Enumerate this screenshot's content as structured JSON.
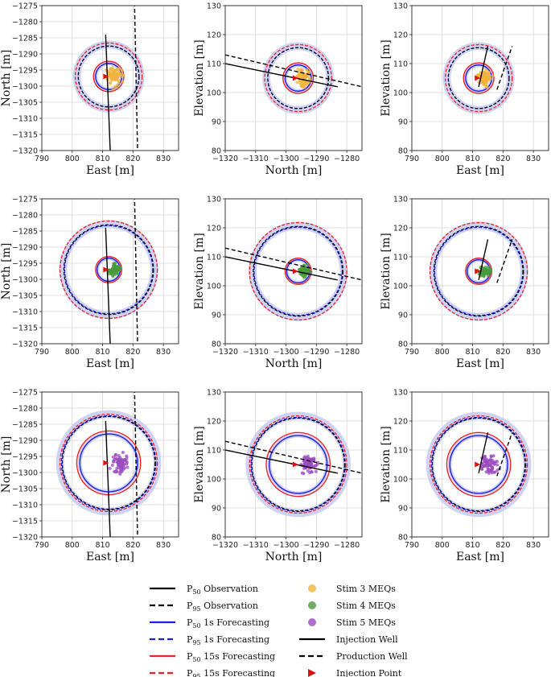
{
  "chart_data": {
    "type": "scatter",
    "layout": "3x3 grid",
    "rows": [
      {
        "stim": "Stim 3",
        "color": "#f0b33c",
        "p50_radius": 4.5,
        "p95_radius": 5.0,
        "p50_15s_radius": 5.0,
        "p95_15s_radius": 11.0,
        "p50_1s_radius": 4.3,
        "p95_1s_radius": 10.0
      },
      {
        "stim": "Stim 4",
        "color": "#4a9a3c",
        "p50_radius": 4.0,
        "p95_radius": 15.0,
        "p50_15s_radius": 4.3,
        "p95_15s_radius": 16.0,
        "p50_1s_radius": 3.8,
        "p95_1s_radius": 14.5
      },
      {
        "stim": "Stim 5",
        "color": "#9b4bbf",
        "p50_radius": 10.0,
        "p95_radius": 15.0,
        "p50_15s_radius": 10.5,
        "p95_15s_radius": 16.0,
        "p50_1s_radius": 9.5,
        "p95_1s_radius": 15.5
      }
    ],
    "panels": [
      {
        "name": "map-view",
        "xlabel": "East [m]",
        "ylabel": "North [m]",
        "xlim": [
          790,
          835
        ],
        "ylim": [
          -1320,
          -1275
        ],
        "xticks": [
          790,
          800,
          810,
          820,
          830
        ],
        "yticks": [
          -1275,
          -1280,
          -1285,
          -1290,
          -1295,
          -1300,
          -1305,
          -1310,
          -1315,
          -1320
        ],
        "center": [
          812,
          -1297
        ]
      },
      {
        "name": "side-view-north",
        "xlabel": "North [m]",
        "ylabel": "Elevation [m]",
        "xlim": [
          -1320,
          -1275
        ],
        "ylim": [
          80,
          130
        ],
        "xticks": [
          -1320,
          -1310,
          -1300,
          -1290,
          -1280
        ],
        "yticks": [
          80,
          90,
          100,
          110,
          120,
          130
        ],
        "center": [
          -1296,
          105
        ]
      },
      {
        "name": "side-view-east",
        "xlabel": "East [m]",
        "ylabel": "Elevation [m]",
        "xlim": [
          790,
          835
        ],
        "ylim": [
          80,
          130
        ],
        "xticks": [
          790,
          800,
          810,
          820,
          830
        ],
        "yticks": [
          80,
          90,
          100,
          110,
          120,
          130
        ],
        "center": [
          812,
          105
        ]
      }
    ],
    "wells": {
      "injection": {
        "map": [
          [
            811,
            -1284
          ],
          [
            812.5,
            -1320
          ]
        ],
        "north": [
          [
            -1320,
            110
          ],
          [
            -1283,
            102
          ]
        ],
        "east": [
          [
            812,
            102
          ],
          [
            815,
            116
          ]
        ]
      },
      "production": {
        "map": [
          [
            820.5,
            -1274
          ],
          [
            821.5,
            -1320
          ]
        ],
        "north": [
          [
            -1320,
            113
          ],
          [
            -1275,
            102
          ]
        ],
        "east": [
          [
            818,
            101
          ],
          [
            823,
            116
          ]
        ]
      },
      "injection_point": {
        "map": [
          811,
          -1297
        ],
        "north": [
          -1297,
          105
        ],
        "east": [
          811.5,
          105
        ]
      }
    },
    "legend": {
      "col1": [
        {
          "label": "P",
          "sub": "50",
          "rest": " Observation",
          "style": "solid",
          "color": "#000000"
        },
        {
          "label": "P",
          "sub": "95",
          "rest": " Observation",
          "style": "dashed",
          "color": "#000000"
        },
        {
          "label": "P",
          "sub": "50",
          "rest": " 1s Forecasting",
          "style": "solid",
          "color": "#1f1fe0"
        },
        {
          "label": "P",
          "sub": "95",
          "rest": " 1s Forecasting",
          "style": "dashed",
          "color": "#1f1fe0"
        },
        {
          "label": "P",
          "sub": "50",
          "rest": " 15s Forecasting",
          "style": "solid",
          "color": "#ee2222"
        },
        {
          "label": "P",
          "sub": "95",
          "rest": " 15s Forecasting",
          "style": "dashed",
          "color": "#ee2222"
        }
      ],
      "col2": [
        {
          "label": "Stim 3 MEQs",
          "marker": "circle",
          "color": "#f0b33c"
        },
        {
          "label": "Stim 4 MEQs",
          "marker": "circle",
          "color": "#4a9a3c"
        },
        {
          "label": "Stim 5 MEQs",
          "marker": "circle",
          "color": "#9b4bbf"
        },
        {
          "label": "Injection Well",
          "style": "solid",
          "color": "#000000"
        },
        {
          "label": "Production Well",
          "style": "dashed",
          "color": "#000000"
        },
        {
          "label": "Injection Point",
          "marker": "triangle",
          "color": "#dd1111"
        }
      ]
    }
  }
}
